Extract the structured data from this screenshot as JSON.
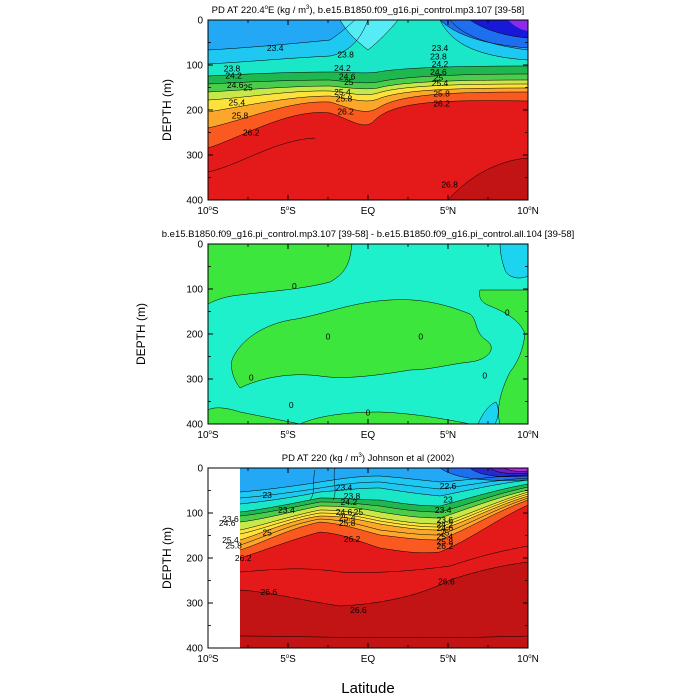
{
  "figure": {
    "xlabel": "Latitude"
  },
  "chart_data": [
    {
      "type": "heatmap",
      "title": "PD AT 220.4°E (kg / m³), b.e15.B1850.f09_g16.pi_control.mp3.107 [39-58]",
      "title_parts": {
        "pre": "PD AT 220.4",
        "deg": "o",
        "mid": "E (kg / m",
        "sup": "3",
        "post": "), b.e15.B1850.f09_g16.pi_control.mp3.107 [39-58]"
      },
      "ylabel": "DEPTH (m)",
      "xlim": [
        -10,
        10
      ],
      "ylim": [
        0,
        400
      ],
      "x_ticks": [
        -10,
        -5,
        0,
        5,
        10
      ],
      "x_tick_labels": [
        {
          "num": "10",
          "deg": "o",
          "hemi": "S"
        },
        {
          "num": "5",
          "deg": "o",
          "hemi": "S"
        },
        {
          "num": "EQ",
          "deg": "",
          "hemi": ""
        },
        {
          "num": "5",
          "deg": "o",
          "hemi": "N"
        },
        {
          "num": "10",
          "deg": "o",
          "hemi": "N"
        }
      ],
      "y_ticks": [
        0,
        100,
        200,
        300,
        400
      ],
      "y_tick_labels": [
        "0",
        "100",
        "200",
        "300",
        "400"
      ],
      "contour_labels": [
        {
          "text": "23.4",
          "x": -5.8,
          "y": 62
        },
        {
          "text": "23.8",
          "x": -8.5,
          "y": 108
        },
        {
          "text": "24.2",
          "x": -8.4,
          "y": 123
        },
        {
          "text": "24.6",
          "x": -8.3,
          "y": 144
        },
        {
          "text": "25",
          "x": -7.5,
          "y": 150
        },
        {
          "text": "25.4",
          "x": -8.2,
          "y": 183
        },
        {
          "text": "25.8",
          "x": -8.0,
          "y": 212
        },
        {
          "text": "26.2",
          "x": -7.3,
          "y": 250
        },
        {
          "text": "23.8",
          "x": -1.4,
          "y": 77
        },
        {
          "text": "24.2",
          "x": -1.6,
          "y": 107
        },
        {
          "text": "24.6",
          "x": -1.3,
          "y": 126
        },
        {
          "text": "25",
          "x": -1.2,
          "y": 138
        },
        {
          "text": "25.4",
          "x": -1.6,
          "y": 160
        },
        {
          "text": "25.8",
          "x": -1.5,
          "y": 174
        },
        {
          "text": "26.2",
          "x": -1.4,
          "y": 203
        },
        {
          "text": "23.4",
          "x": 4.5,
          "y": 62
        },
        {
          "text": "23.8",
          "x": 4.4,
          "y": 81
        },
        {
          "text": "24.2",
          "x": 4.5,
          "y": 98
        },
        {
          "text": "24.6",
          "x": 4.4,
          "y": 115
        },
        {
          "text": "25",
          "x": 4.4,
          "y": 128
        },
        {
          "text": "25.4",
          "x": 4.5,
          "y": 140
        },
        {
          "text": "25.8",
          "x": 4.6,
          "y": 163
        },
        {
          "text": "26.2",
          "x": 4.6,
          "y": 185
        },
        {
          "text": "26.8",
          "x": 5.1,
          "y": 366
        }
      ]
    },
    {
      "type": "heatmap",
      "title": "b.e15.B1850.f09_g16.pi_control.mp3.107 [39-58] - b.e15.B1850.f09_g16.pi_control.all.104 [39-58]",
      "ylabel": "DEPTH (m)",
      "xlim": [
        -10,
        10
      ],
      "ylim": [
        0,
        400
      ],
      "x_ticks": [
        -10,
        -5,
        0,
        5,
        10
      ],
      "x_tick_labels": [
        {
          "num": "10",
          "deg": "o",
          "hemi": "S"
        },
        {
          "num": "5",
          "deg": "o",
          "hemi": "S"
        },
        {
          "num": "EQ",
          "deg": "",
          "hemi": ""
        },
        {
          "num": "5",
          "deg": "o",
          "hemi": "N"
        },
        {
          "num": "10",
          "deg": "o",
          "hemi": "N"
        }
      ],
      "y_ticks": [
        0,
        100,
        200,
        300,
        400
      ],
      "y_tick_labels": [
        "0",
        "100",
        "200",
        "300",
        "400"
      ],
      "contour_labels": [
        {
          "text": "0",
          "x": -4.6,
          "y": 93
        },
        {
          "text": "0",
          "x": -2.5,
          "y": 206
        },
        {
          "text": "0",
          "x": 3.3,
          "y": 206
        },
        {
          "text": "0",
          "x": -7.3,
          "y": 297
        },
        {
          "text": "0",
          "x": -4.8,
          "y": 358
        },
        {
          "text": "0",
          "x": 0.0,
          "y": 374
        },
        {
          "text": "0",
          "x": 8.7,
          "y": 152
        },
        {
          "text": "0",
          "x": 7.3,
          "y": 292
        }
      ]
    },
    {
      "type": "heatmap",
      "title": "PD AT 220 (kg / m³) Johnson et al (2002)",
      "title_parts": {
        "pre": "PD AT 220 (kg / m",
        "sup": "3",
        "post": ") Johnson et al (2002)"
      },
      "ylabel": "DEPTH (m)",
      "xlim": [
        -10,
        10
      ],
      "ylim": [
        0,
        400
      ],
      "data_xlim": [
        -8,
        10
      ],
      "x_ticks": [
        -10,
        -5,
        0,
        5,
        10
      ],
      "x_tick_labels": [
        {
          "num": "10",
          "deg": "o",
          "hemi": "S"
        },
        {
          "num": "5",
          "deg": "o",
          "hemi": "S"
        },
        {
          "num": "EQ",
          "deg": "",
          "hemi": ""
        },
        {
          "num": "5",
          "deg": "o",
          "hemi": "N"
        },
        {
          "num": "10",
          "deg": "o",
          "hemi": "N"
        }
      ],
      "y_ticks": [
        0,
        100,
        200,
        300,
        400
      ],
      "y_tick_labels": [
        "0",
        "100",
        "200",
        "300",
        "400"
      ],
      "contour_labels": [
        {
          "text": "23",
          "x": -6.3,
          "y": 60
        },
        {
          "text": "23.4",
          "x": -5.1,
          "y": 93
        },
        {
          "text": "23.6",
          "x": -8.6,
          "y": 113
        },
        {
          "text": "24.6",
          "x": -8.8,
          "y": 122
        },
        {
          "text": "25",
          "x": -6.3,
          "y": 143
        },
        {
          "text": "25.4",
          "x": -8.6,
          "y": 160
        },
        {
          "text": "25.8",
          "x": -8.4,
          "y": 172
        },
        {
          "text": "26.2",
          "x": -7.8,
          "y": 200
        },
        {
          "text": "26.6",
          "x": -6.2,
          "y": 275
        },
        {
          "text": "23.4",
          "x": -1.5,
          "y": 43
        },
        {
          "text": "23.8",
          "x": -1.0,
          "y": 62
        },
        {
          "text": "24.2",
          "x": -1.2,
          "y": 76
        },
        {
          "text": "24.6",
          "x": -1.5,
          "y": 98
        },
        {
          "text": "25",
          "x": -0.6,
          "y": 98
        },
        {
          "text": "25.4",
          "x": -1.3,
          "y": 110
        },
        {
          "text": "25.8",
          "x": -1.3,
          "y": 122
        },
        {
          "text": "26.2",
          "x": -1.0,
          "y": 158
        },
        {
          "text": "26.6",
          "x": -0.6,
          "y": 315
        },
        {
          "text": "22.6",
          "x": 5.0,
          "y": 40
        },
        {
          "text": "23",
          "x": 5.0,
          "y": 70
        },
        {
          "text": "23.4",
          "x": 4.7,
          "y": 93
        },
        {
          "text": "23.6",
          "x": 4.8,
          "y": 115
        },
        {
          "text": "24.2",
          "x": 4.8,
          "y": 125
        },
        {
          "text": "24.6",
          "x": 4.8,
          "y": 133
        },
        {
          "text": "25",
          "x": 4.8,
          "y": 143
        },
        {
          "text": "25.4",
          "x": 4.8,
          "y": 152
        },
        {
          "text": "25.8",
          "x": 4.8,
          "y": 163
        },
        {
          "text": "26.2",
          "x": 4.8,
          "y": 173
        },
        {
          "text": "26.6",
          "x": 4.9,
          "y": 252
        }
      ]
    }
  ]
}
